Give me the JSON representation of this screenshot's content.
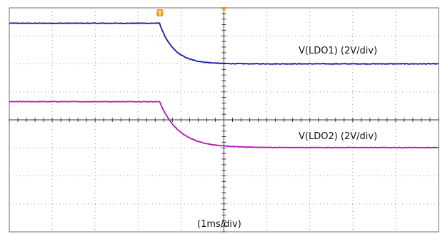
{
  "chart_data": {
    "type": "line",
    "title": "",
    "xlabel": "(1ms/div)",
    "ylabel": "",
    "grid": true,
    "divisions": {
      "x": 10,
      "y": 8
    },
    "trigger_marker": "T",
    "colors": {
      "grid": "#9a9a9a",
      "axis": "#3a3a3a",
      "trigger": "#f29a1a",
      "ldo1": "#1a1aa6",
      "ldo2": "#b01ab0"
    },
    "series": [
      {
        "name": "V(LDO1) (2V/div)",
        "color": "#1a1aa6",
        "initial_div": 3.45,
        "final_div": 2.0,
        "fall_start_div": 3.5,
        "time_constant_div": 0.33,
        "noise_div": 0.012,
        "label": "V(LDO1) (2V/div)"
      },
      {
        "name": "V(LDO2) (2V/div)",
        "color": "#b01ab0",
        "initial_div": 0.65,
        "final_div": -0.99,
        "fall_start_div": 3.5,
        "time_constant_div": 0.45,
        "noise_div": 0.01,
        "label": "V(LDO2) (2V/div)"
      }
    ]
  }
}
